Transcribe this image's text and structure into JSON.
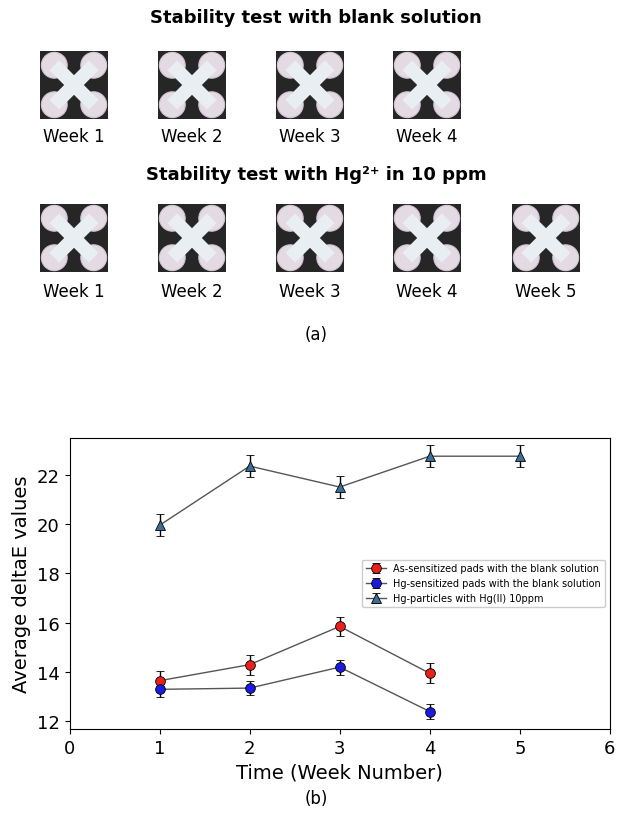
{
  "panel_a": {
    "label": "(a)",
    "groups": [
      {
        "title": "Stability test with blank solution",
        "images": [
          "Week 1",
          "Week 2",
          "Week 3",
          "Week 4"
        ]
      },
      {
        "title": "Stability test with Hg²⁺ in 10 ppm",
        "images": [
          "Week 1",
          "Week 2",
          "Week 3",
          "Week 4",
          "Week 5"
        ]
      }
    ]
  },
  "chart_data": {
    "type": "line",
    "label": "(b)",
    "x_label": "Time (Week Number)",
    "y_label": "Average deltaE values",
    "xlim": [
      0,
      6
    ],
    "xticks": [
      0,
      1,
      2,
      3,
      4,
      5,
      6
    ],
    "ylim": [
      11.7,
      23.5
    ],
    "yticks": [
      12,
      14,
      16,
      18,
      20,
      22
    ],
    "legend": "center right",
    "grid": false,
    "series": [
      {
        "name": "As-sensitized pads with the blank solution",
        "color": "#e8211c",
        "marker": "circle",
        "x": [
          1,
          2,
          3,
          4
        ],
        "values": [
          13.65,
          14.3,
          15.85,
          13.95
        ],
        "errors": [
          0.4,
          0.4,
          0.4,
          0.4
        ]
      },
      {
        "name": "Hg-sensitized pads with the blank solution",
        "color": "#1a1ae0",
        "marker": "circle",
        "x": [
          1,
          2,
          3,
          4
        ],
        "values": [
          13.3,
          13.35,
          14.2,
          12.4
        ],
        "errors": [
          0.3,
          0.3,
          0.3,
          0.3
        ]
      },
      {
        "name": "Hg-particles with Hg(II) 10ppm",
        "color": "#3d6f96",
        "marker": "triangle",
        "x": [
          1,
          2,
          3,
          4,
          5
        ],
        "values": [
          19.95,
          22.35,
          21.5,
          22.75,
          22.75
        ],
        "errors": [
          0.45,
          0.45,
          0.45,
          0.45,
          0.45
        ]
      }
    ]
  }
}
